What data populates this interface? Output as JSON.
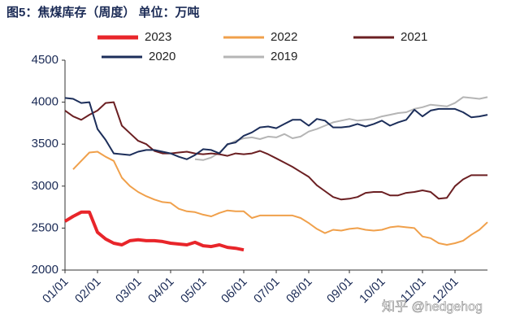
{
  "chart_data": {
    "type": "line",
    "title": "图5：焦煤库存（周度） 单位：万吨",
    "watermark": "知乎 @hedgehog",
    "categories": [
      "01/01",
      null,
      null,
      null,
      "02/01",
      null,
      null,
      null,
      null,
      "03/01",
      null,
      null,
      null,
      "04/01",
      null,
      null,
      null,
      "05/01",
      null,
      null,
      null,
      null,
      "06/01",
      null,
      null,
      null,
      "07/01",
      null,
      null,
      null,
      "08/01",
      null,
      null,
      null,
      null,
      "09/01",
      null,
      null,
      null,
      "10/01",
      null,
      null,
      null,
      null,
      "11/01",
      null,
      null,
      null,
      "12/01",
      null,
      null,
      null,
      null
    ],
    "series": [
      {
        "name": "2023",
        "color": "#e8252a",
        "width": 4,
        "values": [
          2580,
          2640,
          2690,
          2690,
          2450,
          2370,
          2320,
          2300,
          2350,
          2360,
          2350,
          2350,
          2340,
          2320,
          2310,
          2300,
          2330,
          2290,
          2280,
          2300,
          2270,
          2260,
          2240,
          null,
          null,
          null,
          null,
          null,
          null,
          null,
          null,
          null,
          null,
          null,
          null,
          null,
          null,
          null,
          null,
          null,
          null,
          null,
          null,
          null,
          null,
          null,
          null,
          null,
          null,
          null,
          null,
          null,
          null
        ]
      },
      {
        "name": "2022",
        "color": "#f0a04b",
        "width": 2,
        "values": [
          null,
          3200,
          3300,
          3400,
          3410,
          3350,
          3300,
          3100,
          3000,
          2930,
          2880,
          2840,
          2810,
          2800,
          2730,
          2700,
          2690,
          2660,
          2640,
          2680,
          2710,
          2700,
          2700,
          2620,
          2650,
          2650,
          2650,
          2650,
          2650,
          2620,
          2560,
          2490,
          2440,
          2480,
          2470,
          2490,
          2500,
          2480,
          2470,
          2480,
          2510,
          2520,
          2510,
          2500,
          2400,
          2380,
          2320,
          2300,
          2320,
          2350,
          2420,
          2480,
          2570
        ]
      },
      {
        "name": "2021",
        "color": "#6b1f22",
        "width": 2,
        "values": [
          3900,
          3830,
          3790,
          3850,
          3900,
          3990,
          4000,
          3720,
          3630,
          3540,
          3500,
          3420,
          3390,
          3390,
          3400,
          3410,
          3390,
          3380,
          3390,
          3380,
          3360,
          3390,
          3380,
          3390,
          3420,
          3380,
          3330,
          3280,
          3230,
          3170,
          3110,
          3010,
          2940,
          2870,
          2840,
          2850,
          2870,
          2920,
          2930,
          2930,
          2890,
          2890,
          2920,
          2930,
          2950,
          2930,
          2850,
          2860,
          3000,
          3080,
          3130,
          3130,
          3130
        ]
      },
      {
        "name": "2020",
        "color": "#1c2e5a",
        "width": 2,
        "values": [
          4050,
          4040,
          3990,
          4000,
          3680,
          3550,
          3390,
          3380,
          3370,
          3410,
          3430,
          3430,
          3410,
          3390,
          3350,
          3320,
          3370,
          3440,
          3430,
          3390,
          3500,
          3520,
          3600,
          3640,
          3700,
          3710,
          3690,
          3740,
          3790,
          3790,
          3720,
          3800,
          3780,
          3700,
          3700,
          3710,
          3740,
          3710,
          3740,
          3780,
          3720,
          3760,
          3790,
          3910,
          3830,
          3900,
          3920,
          3920,
          3920,
          3880,
          3820,
          3830,
          3850
        ]
      },
      {
        "name": "2019",
        "color": "#b5b5b5",
        "width": 2,
        "values": [
          null,
          null,
          null,
          null,
          null,
          null,
          null,
          null,
          null,
          null,
          null,
          null,
          null,
          null,
          null,
          null,
          3320,
          3310,
          3340,
          3400,
          3490,
          3540,
          3570,
          3580,
          3560,
          3590,
          3580,
          3620,
          3570,
          3590,
          3650,
          3680,
          3720,
          3760,
          3780,
          3800,
          3780,
          3790,
          3800,
          3830,
          3850,
          3870,
          3880,
          3920,
          3940,
          3970,
          3960,
          3950,
          3990,
          4060,
          4050,
          4040,
          4060
        ]
      }
    ],
    "ylim": [
      2000,
      4500
    ],
    "yticks": [
      2000,
      2500,
      3000,
      3500,
      4000,
      4500
    ]
  }
}
